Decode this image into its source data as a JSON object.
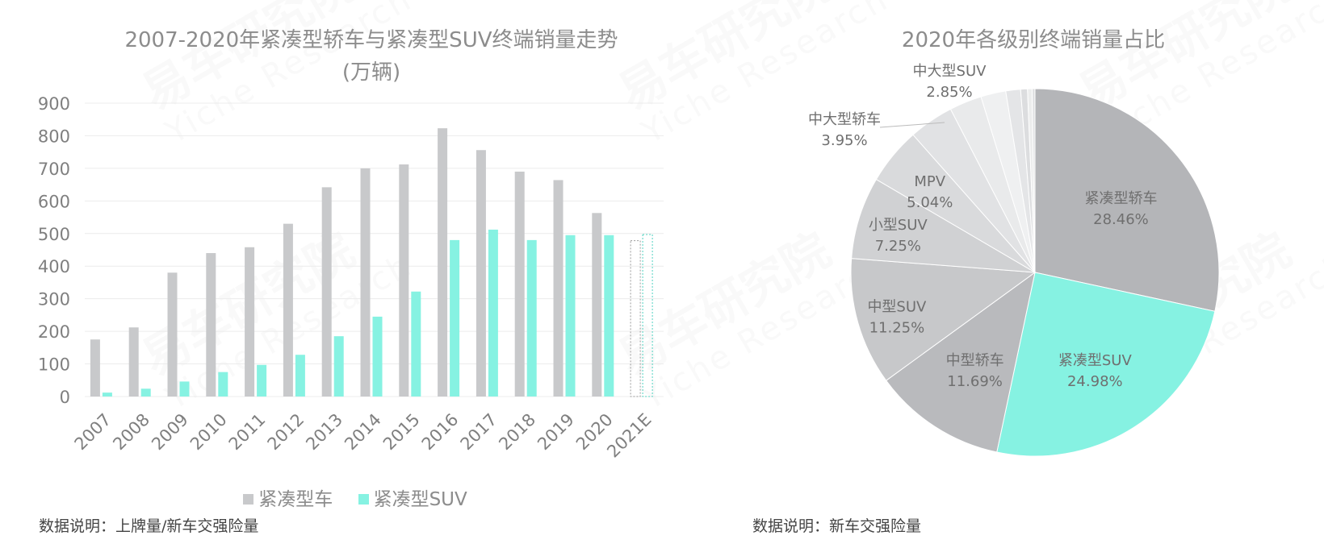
{
  "notes": {
    "left": "数据说明：上牌量/新车交强险量",
    "right": "数据说明：新车交强险量"
  },
  "colors": {
    "sedan": "#c8c9cb",
    "suv": "#86f2e2",
    "grid": "#ececec"
  },
  "chart_data": [
    {
      "type": "bar",
      "title": "2007-2020年紧凑型轿车与紧凑型SUV终端销量走势",
      "subtitle": "(万辆)",
      "categories": [
        "2007",
        "2008",
        "2009",
        "2010",
        "2011",
        "2012",
        "2013",
        "2014",
        "2015",
        "2016",
        "2017",
        "2018",
        "2019",
        "2020",
        "2021E"
      ],
      "series": [
        {
          "name": "紧凑型车",
          "values": [
            175,
            212,
            380,
            440,
            458,
            530,
            642,
            700,
            712,
            823,
            756,
            690,
            664,
            563,
            478
          ],
          "estimated_last": true
        },
        {
          "name": "紧凑型SUV",
          "values": [
            12,
            24,
            46,
            75,
            97,
            128,
            185,
            245,
            322,
            480,
            512,
            480,
            495,
            495,
            497
          ],
          "estimated_last": true
        }
      ],
      "yticks": [
        0,
        100,
        200,
        300,
        400,
        500,
        600,
        700,
        800,
        900
      ],
      "ylim": [
        0,
        900
      ],
      "grid": true,
      "legend": "bottom"
    },
    {
      "type": "pie",
      "title": "2020年各级别终端销量占比",
      "slices": [
        {
          "label": "紧凑型轿车",
          "value": 28.46,
          "pct": "28.46%",
          "color": "#b4b5b8"
        },
        {
          "label": "紧凑型SUV",
          "value": 24.98,
          "pct": "24.98%",
          "color": "#86f2e2"
        },
        {
          "label": "中型轿车",
          "value": 11.69,
          "pct": "11.69%",
          "color": "#b9babd"
        },
        {
          "label": "中型SUV",
          "value": 11.25,
          "pct": "11.25%",
          "color": "#c7c8ca"
        },
        {
          "label": "小型SUV",
          "value": 7.25,
          "pct": "7.25%",
          "color": "#d0d1d3"
        },
        {
          "label": "MPV",
          "value": 5.04,
          "pct": "5.04%",
          "color": "#d9dadc"
        },
        {
          "label": "中大型轿车",
          "value": 3.95,
          "pct": "3.95%",
          "color": "#e1e2e4"
        },
        {
          "label": "中大型SUV",
          "value": 2.85,
          "pct": "2.85%",
          "color": "#e9eaeb"
        },
        {
          "label": "",
          "value": 2.2,
          "pct": "",
          "color": "#eff0f1"
        },
        {
          "label": "",
          "value": 1.3,
          "pct": "",
          "color": "#e4e5e7"
        },
        {
          "label": "",
          "value": 0.6,
          "pct": "",
          "color": "#dcdddf"
        },
        {
          "label": "",
          "value": 0.4,
          "pct": "",
          "color": "#eceded"
        },
        {
          "label": "",
          "value": 0.25,
          "pct": "",
          "color": "#dfe0e2"
        }
      ]
    }
  ]
}
